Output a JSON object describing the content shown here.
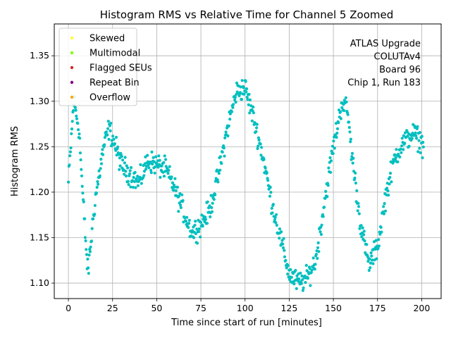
{
  "chart_data": {
    "type": "scatter",
    "title": "Histogram RMS vs Relative Time for Channel 5 Zoomed",
    "xlabel": "Time since start of run [minutes]",
    "ylabel": "Histogram RMS",
    "xlim": [
      -8,
      211
    ],
    "ylim": [
      1.083,
      1.385
    ],
    "xticks": [
      0,
      25,
      50,
      75,
      100,
      125,
      150,
      175,
      200
    ],
    "yticks": [
      1.1,
      1.15,
      1.2,
      1.25,
      1.3,
      1.35
    ],
    "ytick_labels": [
      "1.10",
      "1.15",
      "1.20",
      "1.25",
      "1.30",
      "1.35"
    ],
    "grid": true,
    "legend_position": "top-left",
    "legend": [
      {
        "label": "Skewed",
        "color": "#ffff33"
      },
      {
        "label": "Multimodal",
        "color": "#7fff00"
      },
      {
        "label": "Flagged SEUs",
        "color": "#d62728"
      },
      {
        "label": "Repeat Bin",
        "color": "#800080"
      },
      {
        "label": "Overflow",
        "color": "#ffa500"
      }
    ],
    "annotation": [
      "ATLAS Upgrade",
      "COLUTAv4",
      "Board 96",
      "Chip 1, Run 183"
    ],
    "series": [
      {
        "name": "Channel 5",
        "color": "#00bfbf",
        "curve_x": [
          0,
          3,
          6,
          8,
          10,
          11,
          12,
          15,
          20,
          23,
          25,
          30,
          35,
          40,
          45,
          50,
          55,
          60,
          65,
          70,
          75,
          80,
          85,
          90,
          95,
          100,
          105,
          110,
          115,
          120,
          125,
          130,
          135,
          140,
          145,
          150,
          155,
          158,
          160,
          165,
          170,
          175,
          180,
          185,
          190,
          195,
          200,
          201
        ],
        "curve_y": [
          1.21,
          1.3,
          1.27,
          1.2,
          1.14,
          1.11,
          1.13,
          1.19,
          1.25,
          1.27,
          1.26,
          1.23,
          1.22,
          1.21,
          1.235,
          1.23,
          1.225,
          1.205,
          1.18,
          1.155,
          1.165,
          1.18,
          1.22,
          1.27,
          1.31,
          1.315,
          1.28,
          1.24,
          1.19,
          1.15,
          1.11,
          1.1,
          1.105,
          1.125,
          1.19,
          1.25,
          1.3,
          1.29,
          1.25,
          1.17,
          1.12,
          1.14,
          1.2,
          1.24,
          1.255,
          1.265,
          1.255,
          1.25
        ],
        "n_points": 720,
        "jitter": 0.012
      }
    ]
  }
}
